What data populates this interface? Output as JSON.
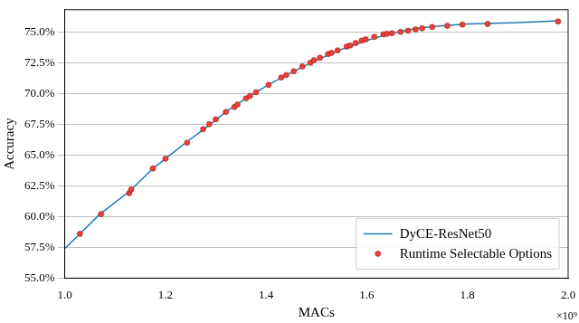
{
  "chart_data": {
    "type": "line",
    "x_label": "MACs",
    "y_label": "Accuracy",
    "annotation": "×10⁹",
    "xlim": [
      1.0,
      2.0
    ],
    "xticks": [
      {
        "value": 1.0,
        "label": "1.0"
      },
      {
        "value": 1.2,
        "label": "1.2"
      },
      {
        "value": 1.4,
        "label": "1.4"
      },
      {
        "value": 1.6,
        "label": "1.6"
      },
      {
        "value": 1.8,
        "label": "1.8"
      },
      {
        "value": 2.0,
        "label": "2.0"
      }
    ],
    "ylim": [
      55,
      76.8
    ],
    "yticks": [
      {
        "value": 55,
        "label": "55.0%"
      },
      {
        "value": 57.5,
        "label": "57.5%"
      },
      {
        "value": 60,
        "label": "60.0%"
      },
      {
        "value": 62.5,
        "label": "62.5%"
      },
      {
        "value": 65,
        "label": "65.0%"
      },
      {
        "value": 67.5,
        "label": "67.5%"
      },
      {
        "value": 70,
        "label": "70.0%"
      },
      {
        "value": 72.5,
        "label": "72.5%"
      },
      {
        "value": 75,
        "label": "75.0%"
      }
    ],
    "grid": true,
    "legend": "lower right",
    "series": [
      {
        "name": "DyCE-ResNet50",
        "type": "line",
        "color": "#1f77b4",
        "line_style": "solid",
        "x": [
          1.0,
          1.03,
          1.07,
          1.13,
          1.175,
          1.2,
          1.24,
          1.28,
          1.32,
          1.36,
          1.4,
          1.45,
          1.5,
          1.55,
          1.6,
          1.65,
          1.7,
          1.75,
          1.8,
          1.9,
          1.98
        ],
        "values": [
          57.4,
          58.6,
          60.2,
          62.1,
          63.9,
          64.7,
          66.0,
          67.2,
          68.5,
          69.6,
          70.6,
          71.7,
          72.7,
          73.6,
          74.3,
          74.9,
          75.3,
          75.5,
          75.65,
          75.75,
          75.9
        ]
      },
      {
        "name": "Runtime Selectable Options",
        "type": "scatter",
        "color": "#e8413b",
        "marker": "circle",
        "x": [
          1.03,
          1.072,
          1.128,
          1.132,
          1.175,
          1.2,
          1.243,
          1.275,
          1.287,
          1.3,
          1.32,
          1.337,
          1.343,
          1.36,
          1.368,
          1.38,
          1.405,
          1.43,
          1.44,
          1.455,
          1.472,
          1.488,
          1.495,
          1.507,
          1.523,
          1.53,
          1.542,
          1.56,
          1.567,
          1.578,
          1.59,
          1.598,
          1.615,
          1.633,
          1.64,
          1.65,
          1.667,
          1.682,
          1.697,
          1.71,
          1.73,
          1.76,
          1.79,
          1.84,
          1.98
        ],
        "values": [
          58.6,
          60.2,
          61.9,
          62.2,
          63.9,
          64.7,
          66.0,
          67.1,
          67.5,
          67.9,
          68.5,
          68.9,
          69.1,
          69.6,
          69.8,
          70.1,
          70.7,
          71.3,
          71.5,
          71.8,
          72.2,
          72.5,
          72.7,
          72.9,
          73.2,
          73.3,
          73.5,
          73.8,
          73.9,
          74.1,
          74.3,
          74.4,
          74.6,
          74.8,
          74.85,
          74.9,
          75.0,
          75.1,
          75.2,
          75.3,
          75.4,
          75.5,
          75.6,
          75.65,
          75.85
        ]
      }
    ]
  }
}
